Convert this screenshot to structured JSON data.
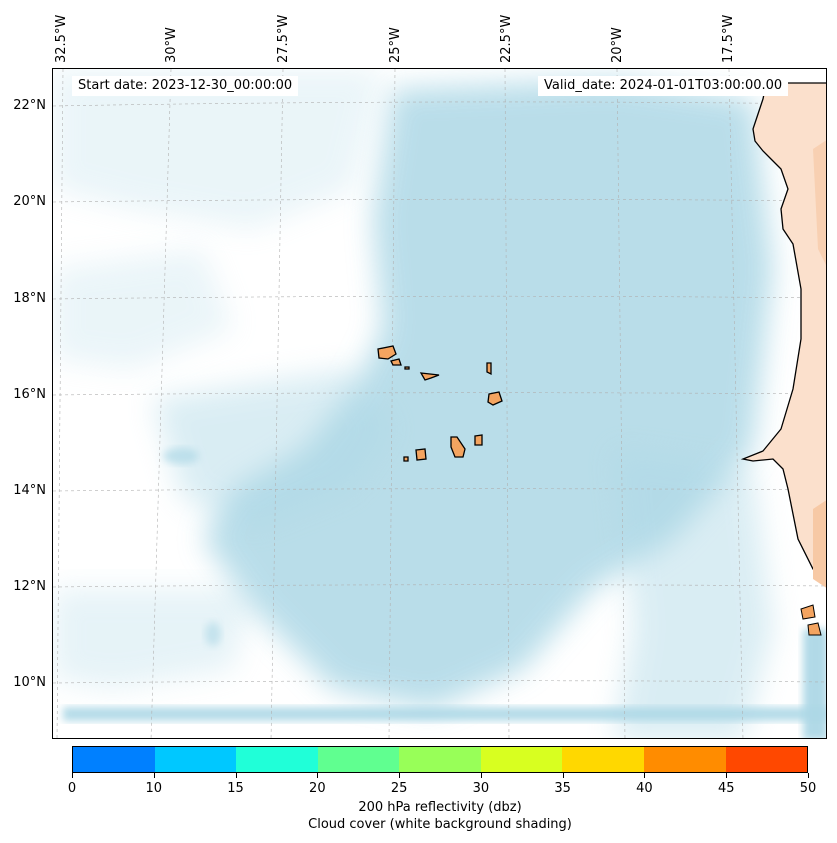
{
  "map": {
    "start_date_text": "Start date: 2023-12-30_00:00:00",
    "valid_date_text": "Valid_date: 2024-01-01T03:00:00.00",
    "lon_labels": [
      "32.5°W",
      "30°W",
      "27.5°W",
      "25°W",
      "22.5°W",
      "20°W",
      "17.5°W"
    ],
    "lat_labels": [
      "22°N",
      "20°N",
      "18°N",
      "16°N",
      "14°N",
      "12°N",
      "10°N"
    ],
    "colors": {
      "ocean_cloud": "#add8e6",
      "land": "#f4a460",
      "coastline": "#000000",
      "gridline": "#b0b0b0"
    }
  },
  "colorbar": {
    "ticks": [
      "0",
      "10",
      "15",
      "20",
      "25",
      "30",
      "35",
      "40",
      "45",
      "50"
    ],
    "colors": [
      "#0080ff",
      "#00c8ff",
      "#20ffd8",
      "#60ff90",
      "#98ff58",
      "#d8ff20",
      "#ffd800",
      "#ff8c00",
      "#ff4800"
    ],
    "label_line1": "200 hPa reflectivity (dbz)",
    "label_line2": "Cloud cover (white background shading)"
  }
}
